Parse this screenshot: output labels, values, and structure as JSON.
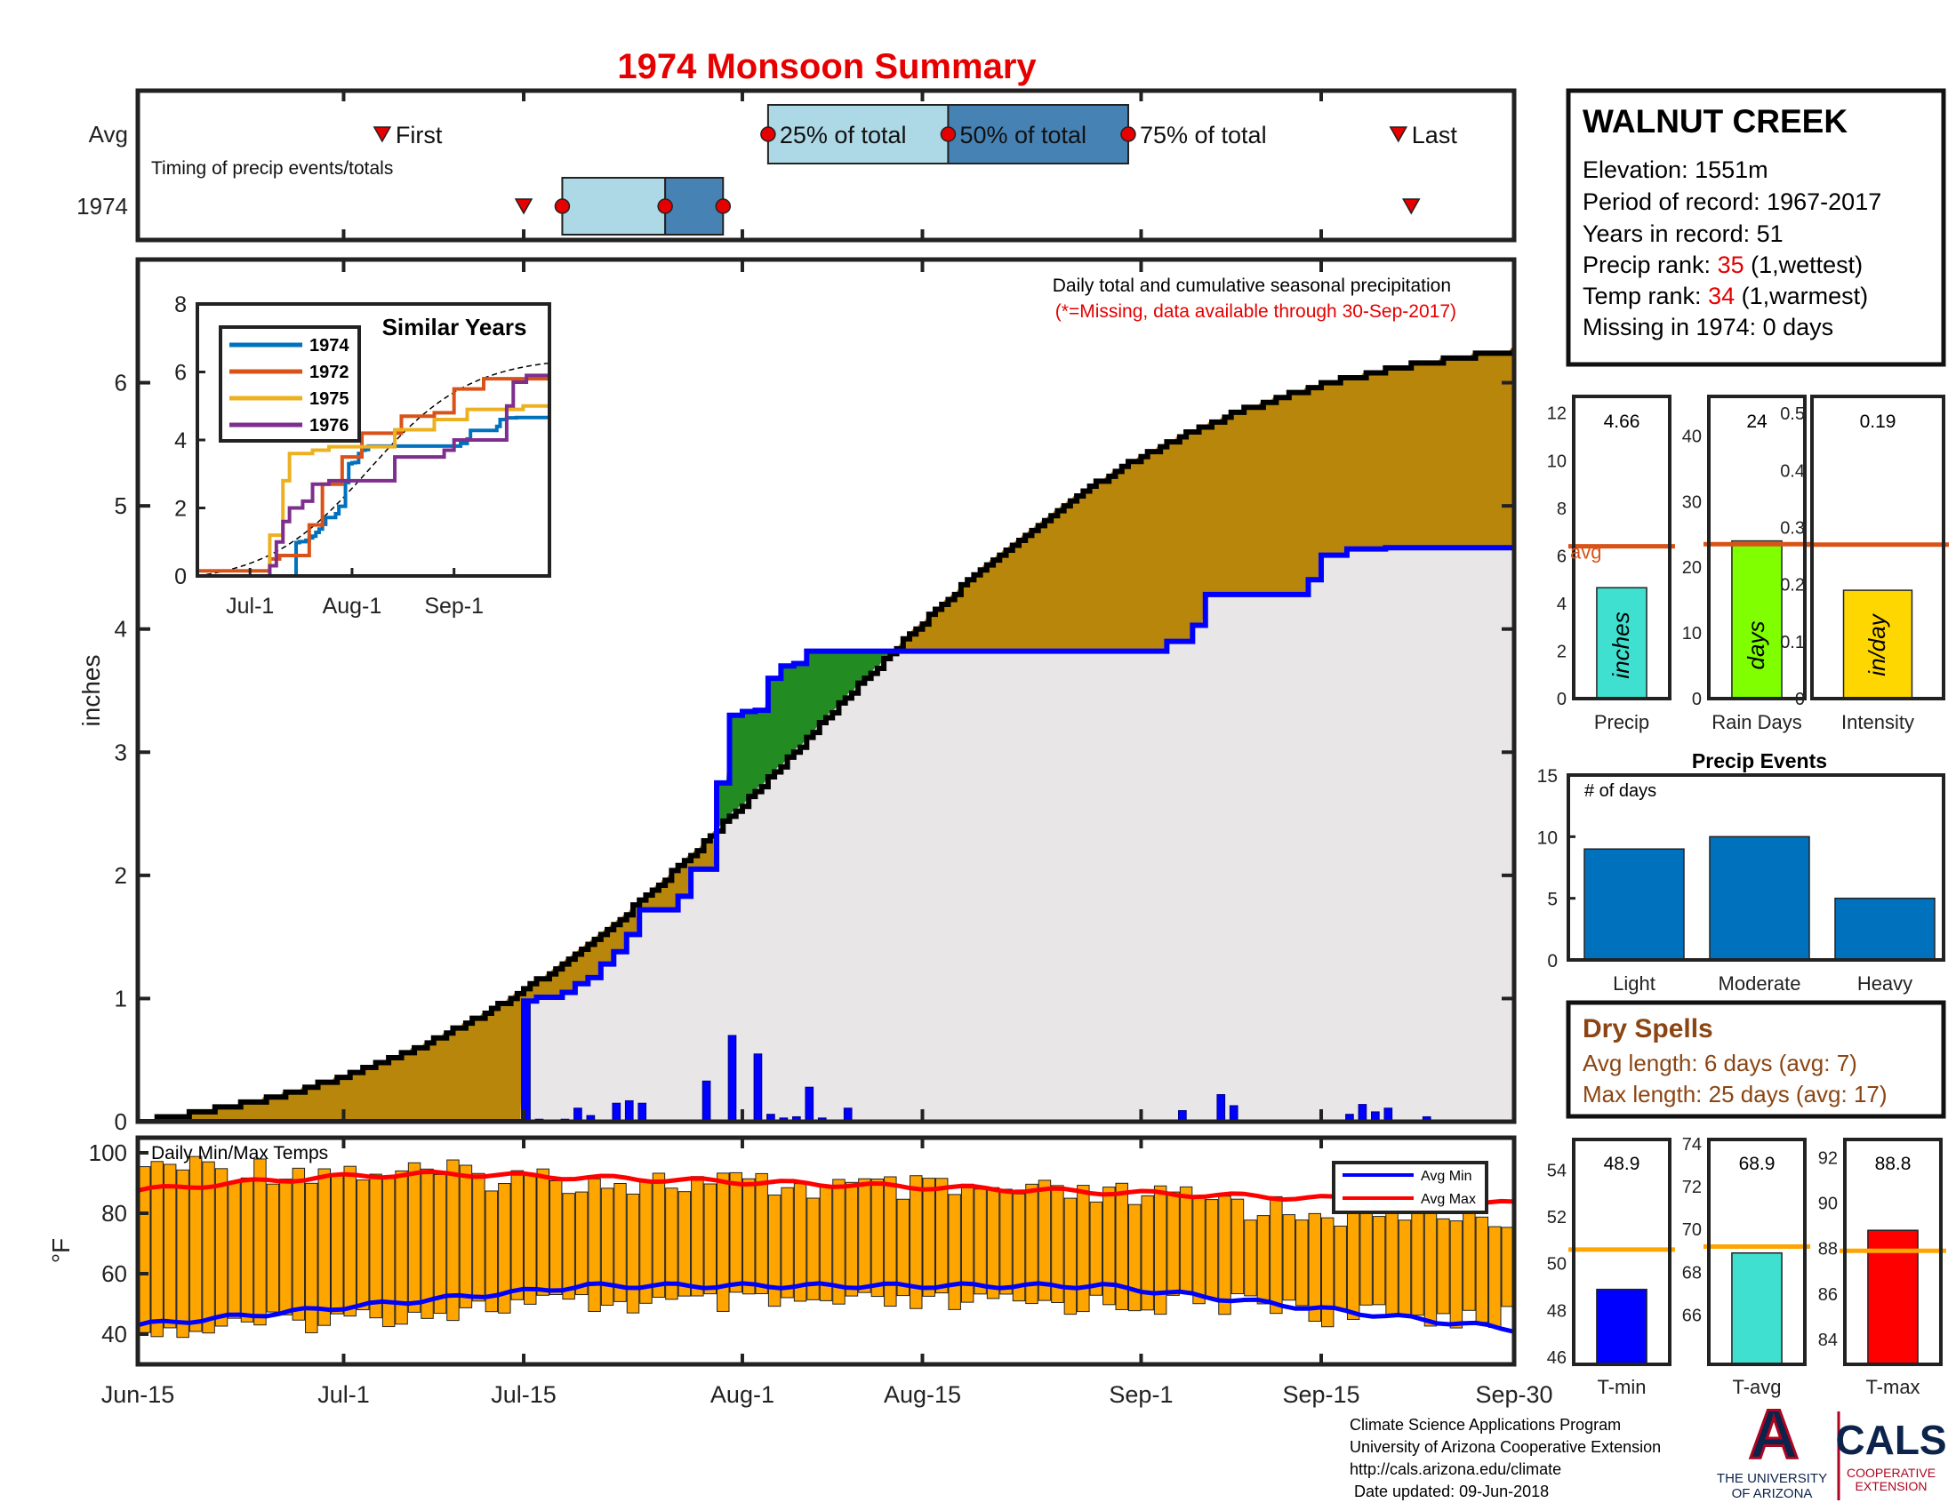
{
  "title": "1974 Monsoon Summary",
  "station": {
    "name": "WALNUT CREEK",
    "elevation": "Elevation: 1551m",
    "period": "Period of record: 1967-2017",
    "years": "Years in record: 51",
    "precip_rank_label": "Precip rank: ",
    "precip_rank_value": "35",
    "precip_rank_note": " (1,wettest)",
    "temp_rank_label": "Temp rank: ",
    "temp_rank_value": "34",
    "temp_rank_note": " (1,warmest)",
    "missing": "Missing in 1974: 0 days"
  },
  "timing": {
    "row_labels": [
      "Avg",
      "1974"
    ],
    "note": "Timing of precip events/totals",
    "avg_labels": [
      "First",
      "25% of total",
      "50% of total",
      "75% of total",
      "Last"
    ],
    "avg_days": {
      "first": 19,
      "p25": 49,
      "p50": 63,
      "p75": 77,
      "last": 98
    },
    "year_days": {
      "first": 30,
      "p25": 33,
      "p50": 41,
      "p75": 45.5,
      "last": 99
    }
  },
  "main_chart": {
    "ylabel": "inches",
    "note": "Daily total and cumulative seasonal precipitation",
    "missing_note": "(*=Missing, data available through 30-Sep-2017)",
    "ylim": [
      0,
      7
    ],
    "yticks": [
      "0",
      "1",
      "2",
      "3",
      "4",
      "5",
      "6"
    ],
    "x_ticks": [
      "Jun-15",
      "Jul-1",
      "Jul-15",
      "Aug-1",
      "Aug-15",
      "Sep-1",
      "Sep-15",
      "Sep-30"
    ],
    "x_tick_days": [
      0,
      16,
      30,
      47,
      61,
      78,
      92,
      107
    ]
  },
  "inset": {
    "title": "Similar Years",
    "yticks": [
      "0",
      "2",
      "4",
      "6",
      "8"
    ],
    "xticks": [
      "Jul-1",
      "Aug-1",
      "Sep-1"
    ]
  },
  "summary_bars": [
    {
      "label": "Precip",
      "value": 4.66,
      "value_text": "4.66",
      "avg": 6.4,
      "unit": "inches",
      "color": "#40e0d0",
      "ymax": 12.7,
      "ticks": [
        0,
        2,
        4,
        6,
        8,
        10,
        12
      ],
      "avg_label": "avg"
    },
    {
      "label": "Rain Days",
      "value": 24,
      "value_text": "24",
      "avg": 23.5,
      "unit": "days",
      "color": "#80ff00",
      "ymax": 46,
      "ticks": [
        0,
        10,
        20,
        30,
        40
      ]
    },
    {
      "label": "Intensity",
      "value": 0.19,
      "value_text": "0.19",
      "avg": 0.27,
      "unit": "in/day",
      "color": "#ffd700",
      "ymax": 0.53,
      "ticks": [
        "0",
        "0.1",
        "0.2",
        "0.3",
        "0.4",
        "0.5"
      ]
    }
  ],
  "events": {
    "title": "Precip Events",
    "ylabel_note": "# of days",
    "categories": [
      "Light",
      "Moderate",
      "Heavy"
    ],
    "values": [
      9,
      10,
      5
    ],
    "yticks": [
      0,
      5,
      10,
      15
    ],
    "color": "#0072bd"
  },
  "dry_spells": {
    "title": "Dry Spells",
    "avg_line": "Avg length: 6 days (avg: 7)",
    "max_line": "Max length: 25 days (avg: 17)",
    "color": "#8b4513"
  },
  "temp_chart": {
    "title": "Daily Min/Max Temps",
    "ylabel": "°F",
    "yticks": [
      "40",
      "60",
      "80",
      "100"
    ],
    "ylim": [
      30,
      105
    ],
    "legend": [
      "Avg Min",
      "Avg Max"
    ]
  },
  "temp_bars": [
    {
      "label": "T-min",
      "value": 48.9,
      "value_text": "48.9",
      "avg": 50.6,
      "color": "#0000ff",
      "ylim": [
        45.7,
        55.3
      ],
      "ticks": [
        46,
        48,
        50,
        52,
        54
      ]
    },
    {
      "label": "T-avg",
      "value": 68.9,
      "value_text": "68.9",
      "avg": 69.2,
      "color": "#40e0d0",
      "ylim": [
        63.7,
        74.2
      ],
      "ticks": [
        66,
        68,
        70,
        72,
        74
      ]
    },
    {
      "label": "T-max",
      "value": 88.8,
      "value_text": "88.8",
      "avg": 87.9,
      "color": "#ff0000",
      "ylim": [
        82.9,
        92.8
      ],
      "ticks": [
        84,
        86,
        88,
        90,
        92
      ]
    }
  ],
  "footer": {
    "lines": [
      "Climate Science Applications Program",
      "University of Arizona Cooperative Extension",
      "http://cals.arizona.edu/climate",
      " Date updated: 09-Jun-2018"
    ]
  },
  "logos": {
    "ua_text_1": "THE UNIVERSITY",
    "ua_text_2": "OF ARIZONA",
    "ua_letter": "A",
    "cals": "CALS",
    "cals_sub_1": "COOPERATIVE",
    "cals_sub_2": "EXTENSION"
  }
}
